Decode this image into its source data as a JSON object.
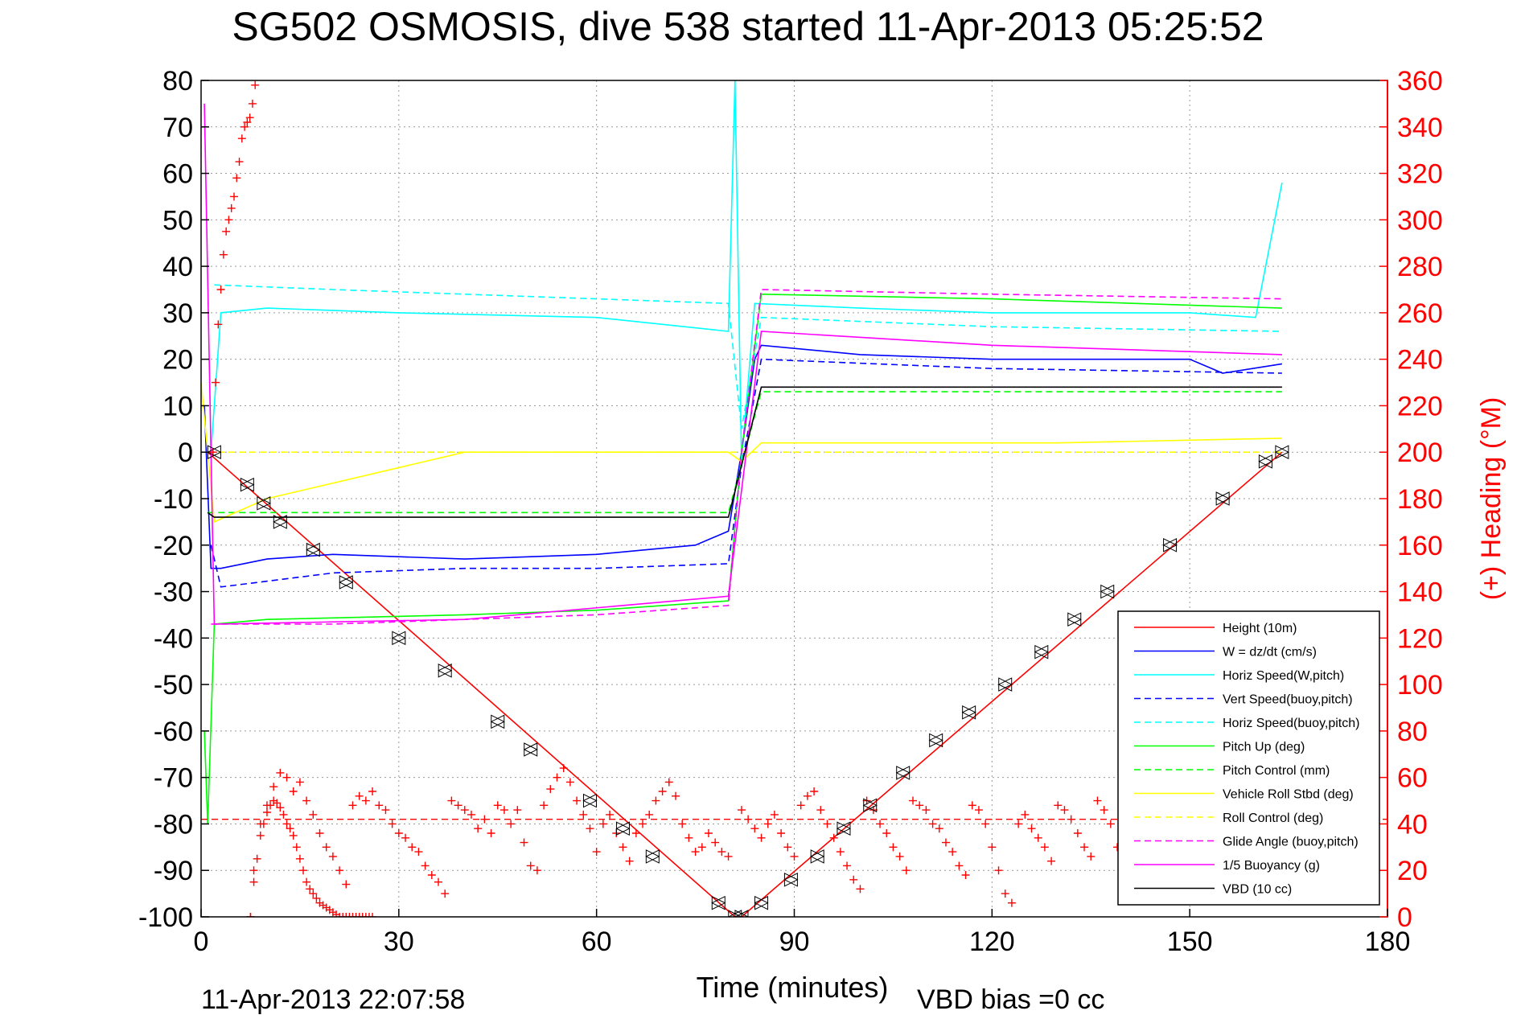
{
  "chart_data": {
    "type": "line",
    "title": "SG502 OSMOSIS, dive 538 started 11-Apr-2013 05:25:52",
    "xlabel": "Time (minutes)",
    "ylabel": "",
    "ylabel_right": "(+) Heading (°M)",
    "xlim": [
      0,
      180
    ],
    "ylim": [
      -100,
      80
    ],
    "ylim_right": [
      0,
      360
    ],
    "xticks": [
      "0",
      "30",
      "60",
      "90",
      "120",
      "150",
      "180"
    ],
    "yticks": [
      "80",
      "70",
      "60",
      "50",
      "40",
      "30",
      "20",
      "10",
      "0",
      "-10",
      "-20",
      "-30",
      "-40",
      "-50",
      "-60",
      "-70",
      "-80",
      "-90",
      "-100"
    ],
    "yticks_right": [
      "360",
      "340",
      "320",
      "300",
      "280",
      "260",
      "240",
      "220",
      "200",
      "180",
      "160",
      "140",
      "120",
      "100",
      "80",
      "60",
      "40",
      "20",
      "0"
    ],
    "footer_left": "11-Apr-2013 22:07:58",
    "footer_right": "VBD bias =0 cc",
    "grid": true,
    "legend_position": "bottom-right",
    "colors": {
      "red": "#ff0000",
      "blue": "#0000ff",
      "cyan": "#00ffff",
      "green": "#00ff00",
      "yellow": "#ffff00",
      "magenta": "#ff00ff",
      "black": "#000000"
    },
    "series": [
      {
        "name": "Height (10m)",
        "color": "#ff0000",
        "style": "solid",
        "x": [
          1,
          81,
          82,
          164
        ],
        "y": [
          0,
          -100,
          -100,
          0
        ]
      },
      {
        "name": "W = dz/dt (cm/s)",
        "color": "#0000ff",
        "style": "solid",
        "x": [
          0.5,
          1.5,
          3,
          10,
          20,
          40,
          60,
          75,
          80,
          82,
          84,
          85,
          100,
          120,
          150,
          155,
          164
        ],
        "y": [
          10,
          -25,
          -25,
          -23,
          -22,
          -23,
          -22,
          -20,
          -17,
          0,
          20,
          23,
          21,
          20,
          20,
          17,
          19
        ]
      },
      {
        "name": "Horiz Speed(W,pitch)",
        "color": "#00ffff",
        "style": "solid",
        "x": [
          1.5,
          3,
          10,
          30,
          60,
          80,
          81,
          82,
          84,
          100,
          120,
          150,
          160,
          164
        ],
        "y": [
          0,
          30,
          31,
          30,
          29,
          26,
          80,
          -2,
          32,
          31,
          30,
          30,
          29,
          58
        ]
      },
      {
        "name": "Vert Speed(buoy,pitch)",
        "color": "#0000ff",
        "style": "dashed",
        "x": [
          1.5,
          3,
          20,
          40,
          60,
          80,
          82,
          85,
          120,
          164
        ],
        "y": [
          -20,
          -29,
          -26,
          -25,
          -25,
          -24,
          -3,
          20,
          18,
          17
        ]
      },
      {
        "name": "Horiz Speed(buoy,pitch)",
        "color": "#00ffff",
        "style": "dashed",
        "x": [
          2,
          20,
          60,
          80,
          82,
          85,
          120,
          164
        ],
        "y": [
          36,
          35,
          33,
          32,
          5,
          29,
          27,
          26
        ]
      },
      {
        "name": "Pitch Up (deg)",
        "color": "#00ff00",
        "style": "solid",
        "x": [
          0.5,
          1,
          2,
          10,
          40,
          60,
          80,
          82,
          85,
          120,
          164
        ],
        "y": [
          -60,
          -80,
          -37,
          -36,
          -35,
          -34,
          -32,
          0,
          34,
          33,
          31
        ]
      },
      {
        "name": "Pitch Control (mm)",
        "color": "#00ff00",
        "style": "dashed",
        "x": [
          1,
          80,
          85,
          164
        ],
        "y": [
          -13,
          -13,
          13,
          13
        ]
      },
      {
        "name": "Vehicle Roll Stbd (deg)",
        "color": "#ffff00",
        "style": "solid",
        "x": [
          0,
          2,
          10,
          40,
          60,
          80,
          82,
          85,
          100,
          130,
          164
        ],
        "y": [
          15,
          -15,
          -10,
          0,
          0,
          0,
          -2,
          2,
          2,
          2,
          3
        ]
      },
      {
        "name": "Roll Control (deg)",
        "color": "#ffff00",
        "style": "dashed",
        "x": [
          1,
          80,
          85,
          164
        ],
        "y": [
          0,
          0,
          0,
          0
        ]
      },
      {
        "name": "Glide Angle (buoy,pitch)",
        "color": "#ff00ff",
        "style": "dashed",
        "x": [
          1.5,
          20,
          60,
          80,
          82,
          85,
          120,
          164
        ],
        "y": [
          -37,
          -37,
          -35,
          -33,
          0,
          35,
          34,
          33
        ]
      },
      {
        "name": "1/5 Buoyancy (g)",
        "color": "#ff00ff",
        "style": "solid",
        "x": [
          0.5,
          1.5,
          2,
          40,
          80,
          85,
          120,
          164
        ],
        "y": [
          75,
          0,
          -37,
          -36,
          -31,
          26,
          23,
          21
        ]
      },
      {
        "name": "VBD (10 cc)",
        "color": "#000000",
        "style": "solid",
        "x": [
          1,
          2,
          80,
          85,
          164
        ],
        "y": [
          -13,
          -14,
          -14,
          14,
          14
        ]
      }
    ],
    "heading": {
      "name": "Heading",
      "axis": "right",
      "color": "#ff0000",
      "marker": "+",
      "mean_line": 42,
      "segments": [
        {
          "x": [
            7.5,
            8,
            9,
            10,
            11,
            12,
            13,
            14,
            15,
            16,
            17,
            18,
            19,
            20,
            21,
            22,
            23,
            24,
            25,
            26,
            27,
            28,
            29,
            30,
            31,
            32,
            33,
            34,
            35,
            36,
            37,
            38,
            39,
            40,
            41,
            42,
            43,
            44,
            45,
            46,
            47,
            48,
            49,
            50,
            51,
            52,
            53,
            54,
            55,
            56,
            57,
            58,
            59,
            60,
            61,
            62,
            63,
            64,
            65,
            66,
            67,
            68,
            69,
            70,
            71,
            72,
            73,
            74,
            75,
            76,
            77,
            78,
            79,
            80
          ],
          "y": [
            0,
            20,
            40,
            48,
            56,
            62,
            60,
            54,
            58,
            50,
            44,
            36,
            30,
            26,
            20,
            14,
            48,
            52,
            50,
            54,
            48,
            46,
            40,
            36,
            34,
            30,
            28,
            22,
            18,
            15,
            10,
            50,
            48,
            46,
            44,
            38,
            42,
            36,
            48,
            46,
            40,
            46,
            32,
            22,
            20,
            48,
            55,
            60,
            64,
            58,
            50,
            44,
            38,
            28,
            40,
            44,
            36,
            30,
            24,
            36,
            40,
            44,
            50,
            54,
            58,
            52,
            40,
            34,
            28,
            30,
            36,
            32,
            28,
            26
          ]
        },
        {
          "x": [
            82,
            83,
            84,
            85,
            86,
            87,
            88,
            89,
            90,
            91,
            92,
            93,
            94,
            95,
            96,
            97,
            98,
            99,
            100,
            101,
            102,
            103,
            104,
            105,
            106,
            107,
            108,
            109,
            110,
            111,
            112,
            113,
            114,
            115,
            116,
            117,
            118,
            119,
            120,
            121,
            122,
            123,
            124,
            125,
            126,
            127,
            128,
            129,
            130,
            131,
            132,
            133,
            134,
            135,
            136,
            137,
            138,
            139
          ],
          "y": [
            46,
            42,
            38,
            34,
            40,
            44,
            36,
            30,
            26,
            48,
            52,
            54,
            46,
            40,
            34,
            28,
            22,
            16,
            12,
            50,
            46,
            40,
            36,
            30,
            26,
            20,
            50,
            48,
            46,
            40,
            38,
            32,
            28,
            22,
            18,
            48,
            46,
            40,
            30,
            20,
            10,
            6,
            40,
            44,
            38,
            34,
            30,
            24,
            48,
            46,
            42,
            36,
            30,
            26,
            50,
            46,
            40,
            30
          ]
        },
        {
          "x": [
            7.5,
            8,
            8.5,
            9,
            9.5,
            10,
            10.5,
            11,
            11.5,
            12,
            12.5,
            13,
            13.5,
            14,
            14.5,
            15,
            15.5,
            16,
            16.5,
            17,
            17.5,
            18,
            18.5,
            19,
            19.5,
            20,
            20.5,
            21,
            21.5,
            22,
            22.5,
            23,
            23.5,
            24,
            24.5,
            25,
            25.5,
            26
          ],
          "y": [
            0,
            15,
            25,
            35,
            40,
            45,
            48,
            50,
            49,
            47,
            44,
            40,
            38,
            35,
            30,
            25,
            20,
            15,
            12,
            10,
            8,
            6,
            5,
            4,
            3,
            2,
            1,
            0,
            0,
            0,
            0,
            0,
            0,
            0,
            0,
            0,
            0,
            0
          ]
        },
        {
          "x": [
            1.8,
            2.2,
            2.6,
            3,
            3.4,
            3.8,
            4.2,
            4.6,
            5,
            5.4,
            5.8,
            6.2,
            6.6,
            7,
            7.4,
            7.8,
            8.2
          ],
          "y": [
            200,
            230,
            255,
            270,
            285,
            295,
            300,
            305,
            310,
            318,
            325,
            335,
            340,
            342,
            344,
            350,
            358
          ]
        }
      ]
    },
    "turn_markers": {
      "symbol": "triangle",
      "x": [
        2,
        7,
        9.5,
        12,
        17,
        22,
        30,
        37,
        45,
        50,
        59,
        64,
        68.5,
        78.5,
        81,
        82,
        85,
        89.5,
        93.5,
        97.5,
        101.5,
        106.5,
        111.5,
        116.5,
        122,
        127.5,
        132.5,
        137.5,
        147,
        155,
        161.5,
        164
      ],
      "y": [
        0,
        -7,
        -11,
        -15,
        -21,
        -28,
        -40,
        -47,
        -58,
        -64,
        -75,
        -81,
        -87,
        -97,
        -100,
        -100,
        -97,
        -92,
        -87,
        -81,
        -76,
        -69,
        -62,
        -56,
        -50,
        -43,
        -36,
        -30,
        -20,
        -10,
        -2,
        0
      ]
    }
  }
}
